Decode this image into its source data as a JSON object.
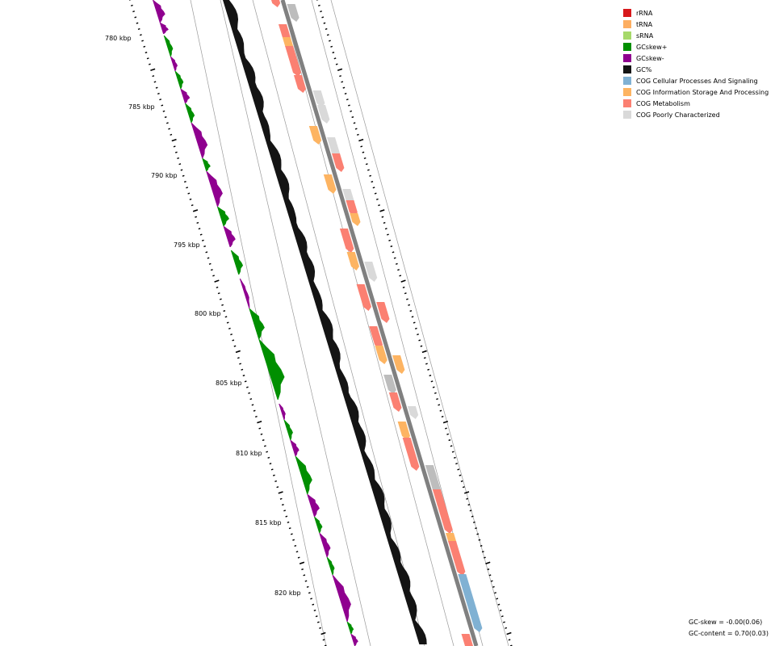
{
  "map": {
    "kbp_labels": [
      "780 kbp",
      "785 kbp",
      "790 kbp",
      "795 kbp",
      "800 kbp",
      "805 kbp",
      "810 kbp",
      "815 kbp",
      "820 kbp"
    ]
  },
  "legend": {
    "items": [
      {
        "label": "rRNA",
        "color": "#d7191c"
      },
      {
        "label": "tRNA",
        "color": "#fdae61"
      },
      {
        "label": "sRNA",
        "color": "#a6d96a"
      },
      {
        "label": "GCskew+",
        "color": "#008f00"
      },
      {
        "label": "GCskew-",
        "color": "#8f008f"
      },
      {
        "label": "GC%",
        "color": "#141414"
      },
      {
        "label": "COG Cellular Processes And Signaling",
        "color": "#80b1d3"
      },
      {
        "label": "COG Information Storage And Processing",
        "color": "#fdb462"
      },
      {
        "label": "COG Metabolism",
        "color": "#fb8072"
      },
      {
        "label": "COG Poorly Characterized",
        "color": "#d9d9d9"
      }
    ]
  },
  "stats": {
    "gc_skew": "GC-skew = -0.00(0.06)",
    "gc_content": "GC-content = 0.70(0.03)"
  },
  "colors": {
    "cog_cellular": "#80b1d3",
    "cog_info": "#fdb462",
    "cog_metabolism": "#fb8072",
    "cog_poor": "#d9d9d9",
    "cog_poor_dark": "#bdbdbd",
    "gcskew_pos": "#008f00",
    "gcskew_neg": "#8f008f",
    "gc_percent": "#141414",
    "backbone": "#808080"
  }
}
